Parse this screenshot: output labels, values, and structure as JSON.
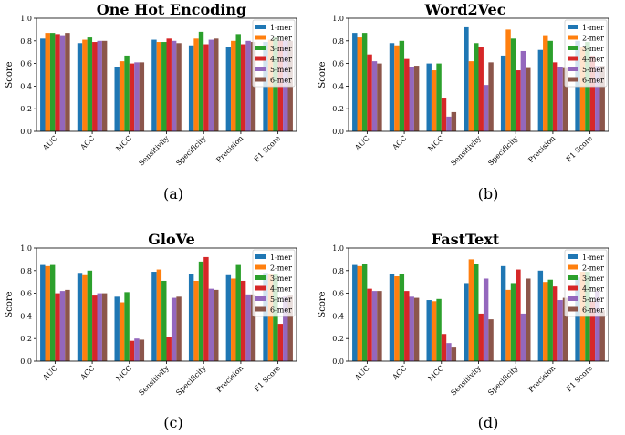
{
  "figure": {
    "captions": [
      "(a)",
      "(b)",
      "(c)",
      "(d)"
    ]
  },
  "chart_data": [
    {
      "type": "bar",
      "title": "One Hot Encoding",
      "caption": "(a)",
      "ylabel": "Score",
      "xlabel": "",
      "ylim": [
        0,
        1.0
      ],
      "yticks": [
        "0.0",
        "0.2",
        "0.4",
        "0.6",
        "0.8",
        "1.0"
      ],
      "legend_position": "upper-right",
      "categories": [
        "AUC",
        "ACC",
        "MCC",
        "Sensitivity",
        "Specificity",
        "Precision",
        "F1 Score"
      ],
      "series": [
        {
          "name": "1-mer",
          "color": "#1f77b4",
          "values": [
            0.82,
            0.78,
            0.57,
            0.81,
            0.76,
            0.75,
            0.79
          ]
        },
        {
          "name": "2-mer",
          "color": "#ff7f0e",
          "values": [
            0.87,
            0.81,
            0.62,
            0.79,
            0.82,
            0.8,
            0.81
          ]
        },
        {
          "name": "3-mer",
          "color": "#2ca02c",
          "values": [
            0.87,
            0.83,
            0.67,
            0.79,
            0.88,
            0.86,
            0.83
          ]
        },
        {
          "name": "4-mer",
          "color": "#d62728",
          "values": [
            0.86,
            0.79,
            0.6,
            0.82,
            0.77,
            0.77,
            0.8
          ]
        },
        {
          "name": "5-mer",
          "color": "#9467bd",
          "values": [
            0.85,
            0.8,
            0.61,
            0.8,
            0.81,
            0.8,
            0.8
          ]
        },
        {
          "name": "6-mer",
          "color": "#8c564b",
          "values": [
            0.87,
            0.8,
            0.61,
            0.78,
            0.82,
            0.79,
            0.8
          ]
        }
      ]
    },
    {
      "type": "bar",
      "title": "Word2Vec",
      "caption": "(b)",
      "ylabel": "Score",
      "xlabel": "",
      "ylim": [
        0,
        1.0
      ],
      "yticks": [
        "0.0",
        "0.2",
        "0.4",
        "0.6",
        "0.8",
        "1.0"
      ],
      "legend_position": "upper-right",
      "categories": [
        "AUC",
        "ACC",
        "MCC",
        "Sensitivity",
        "Specificity",
        "Precision",
        "F1 Score"
      ],
      "series": [
        {
          "name": "1-mer",
          "color": "#1f77b4",
          "values": [
            0.87,
            0.78,
            0.6,
            0.92,
            0.67,
            0.72,
            0.8
          ]
        },
        {
          "name": "2-mer",
          "color": "#ff7f0e",
          "values": [
            0.83,
            0.76,
            0.54,
            0.62,
            0.9,
            0.85,
            0.75
          ]
        },
        {
          "name": "3-mer",
          "color": "#2ca02c",
          "values": [
            0.87,
            0.8,
            0.6,
            0.78,
            0.82,
            0.8,
            0.79
          ]
        },
        {
          "name": "4-mer",
          "color": "#d62728",
          "values": [
            0.68,
            0.64,
            0.29,
            0.75,
            0.54,
            0.61,
            0.67
          ]
        },
        {
          "name": "5-mer",
          "color": "#9467bd",
          "values": [
            0.62,
            0.57,
            0.13,
            0.41,
            0.71,
            0.57,
            0.58
          ]
        },
        {
          "name": "6-mer",
          "color": "#8c564b",
          "values": [
            0.6,
            0.58,
            0.17,
            0.61,
            0.56,
            0.56,
            0.58
          ]
        }
      ]
    },
    {
      "type": "bar",
      "title": "GloVe",
      "caption": "(c)",
      "ylabel": "Score",
      "xlabel": "",
      "ylim": [
        0,
        1.0
      ],
      "yticks": [
        "0.0",
        "0.2",
        "0.4",
        "0.6",
        "0.8",
        "1.0"
      ],
      "legend_position": "upper-right",
      "categories": [
        "AUC",
        "ACC",
        "MCC",
        "Sensitivity",
        "Specificity",
        "Precision",
        "F1 Score"
      ],
      "series": [
        {
          "name": "1-mer",
          "color": "#1f77b4",
          "values": [
            0.85,
            0.78,
            0.57,
            0.79,
            0.77,
            0.76,
            0.78
          ]
        },
        {
          "name": "2-mer",
          "color": "#ff7f0e",
          "values": [
            0.84,
            0.76,
            0.52,
            0.81,
            0.71,
            0.73,
            0.77
          ]
        },
        {
          "name": "3-mer",
          "color": "#2ca02c",
          "values": [
            0.85,
            0.8,
            0.61,
            0.71,
            0.88,
            0.85,
            0.77
          ]
        },
        {
          "name": "4-mer",
          "color": "#d62728",
          "values": [
            0.6,
            0.58,
            0.18,
            0.21,
            0.92,
            0.71,
            0.33
          ]
        },
        {
          "name": "5-mer",
          "color": "#9467bd",
          "values": [
            0.62,
            0.6,
            0.2,
            0.56,
            0.64,
            0.59,
            0.57
          ]
        },
        {
          "name": "6-mer",
          "color": "#8c564b",
          "values": [
            0.63,
            0.6,
            0.19,
            0.57,
            0.63,
            0.59,
            0.58
          ]
        }
      ]
    },
    {
      "type": "bar",
      "title": "FastText",
      "caption": "(d)",
      "ylabel": "Score",
      "xlabel": "",
      "ylim": [
        0,
        1.0
      ],
      "yticks": [
        "0.0",
        "0.2",
        "0.4",
        "0.6",
        "0.8",
        "1.0"
      ],
      "legend_position": "upper-right",
      "categories": [
        "AUC",
        "ACC",
        "MCC",
        "Sensitivity",
        "Specificity",
        "Precision",
        "F1 Score"
      ],
      "series": [
        {
          "name": "1-mer",
          "color": "#1f77b4",
          "values": [
            0.85,
            0.77,
            0.54,
            0.69,
            0.84,
            0.8,
            0.74
          ]
        },
        {
          "name": "2-mer",
          "color": "#ff7f0e",
          "values": [
            0.84,
            0.75,
            0.53,
            0.9,
            0.63,
            0.7,
            0.79
          ]
        },
        {
          "name": "3-mer",
          "color": "#2ca02c",
          "values": [
            0.86,
            0.77,
            0.55,
            0.86,
            0.69,
            0.72,
            0.79
          ]
        },
        {
          "name": "4-mer",
          "color": "#d62728",
          "values": [
            0.64,
            0.62,
            0.24,
            0.42,
            0.81,
            0.66,
            0.53
          ]
        },
        {
          "name": "5-mer",
          "color": "#9467bd",
          "values": [
            0.62,
            0.57,
            0.16,
            0.73,
            0.42,
            0.54,
            0.62
          ]
        },
        {
          "name": "6-mer",
          "color": "#8c564b",
          "values": [
            0.62,
            0.56,
            0.12,
            0.37,
            0.73,
            0.56,
            0.45
          ]
        }
      ]
    }
  ]
}
